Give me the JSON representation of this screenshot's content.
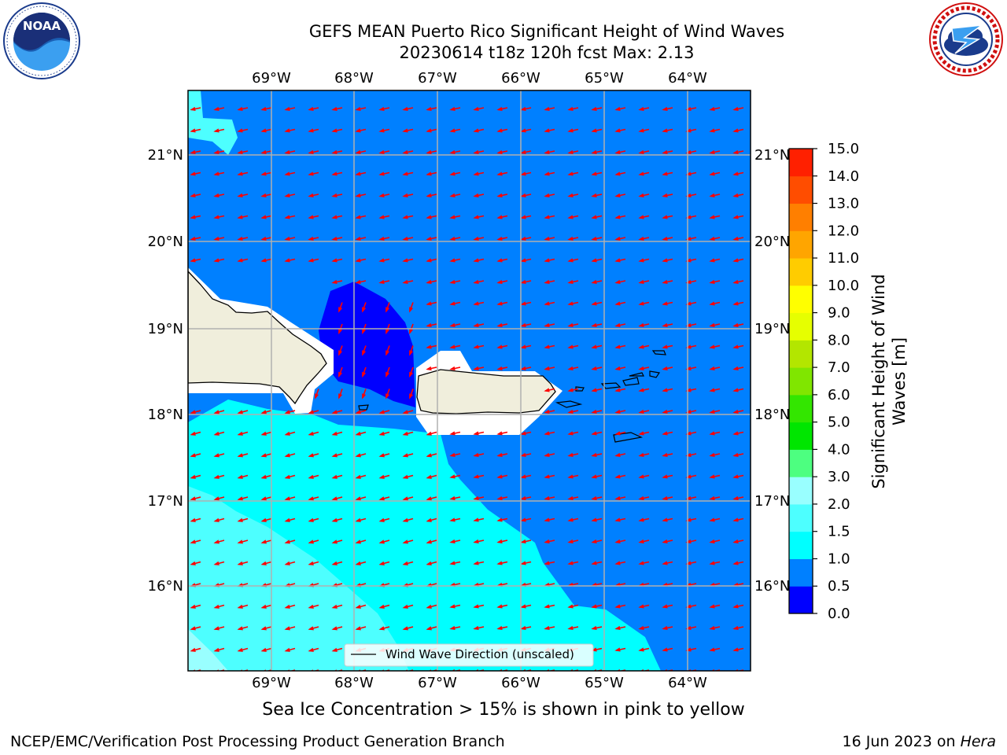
{
  "header": {
    "title_line1": "GEFS MEAN Puerto Rico Significant Height of Wind Waves",
    "title_line2": "20230614 t18z 120h fcst   Max: 2.13"
  },
  "logos": {
    "left": {
      "icon": "noaa-logo-icon",
      "text": "NOAA",
      "ring_text": "NATIONAL OCEANIC AND ATMOSPHERIC ADMINISTRATION · U.S. DEPARTMENT OF COMMERCE"
    },
    "right": {
      "icon": "nws-logo-icon",
      "ring_text": "NATIONAL WEATHER SERVICE"
    }
  },
  "map": {
    "lon_labels_top": [
      "69°W",
      "68°W",
      "67°W",
      "66°W",
      "65°W",
      "64°W"
    ],
    "lon_labels_bottom": [
      "69°W",
      "68°W",
      "67°W",
      "66°W",
      "65°W",
      "64°W"
    ],
    "lat_labels_left": [
      "21°N",
      "20°N",
      "19°N",
      "18°N",
      "17°N",
      "16°N"
    ],
    "lat_labels_right": [
      "21°N",
      "20°N",
      "19°N",
      "18°N",
      "17°N",
      "16°N"
    ],
    "legend_label": "Wind Wave Direction (unscaled)",
    "colors": {
      "ocean": "#0080ff",
      "land": "#f0eedc",
      "arrow": "#ff0000",
      "low": "#0000ff",
      "mid": "#00ffff",
      "high": "#4dffff",
      "higher": "#99ffff"
    }
  },
  "colorbar": {
    "title_line1": "Significant Height of Wind",
    "title_line2": "Waves [m]",
    "tick_labels": [
      "0.0",
      "0.5",
      "1.0",
      "1.5",
      "2.0",
      "3.0",
      "4.0",
      "5.0",
      "6.0",
      "7.0",
      "8.0",
      "9.0",
      "10.0",
      "11.0",
      "12.0",
      "13.0",
      "14.0",
      "15.0"
    ],
    "colors": [
      "#0000ff",
      "#0080ff",
      "#00ffff",
      "#4dffff",
      "#99ffff",
      "#4dff80",
      "#00e600",
      "#33e600",
      "#80e600",
      "#b3e600",
      "#e6ff00",
      "#ffff00",
      "#ffcc00",
      "#ffa500",
      "#ff7f00",
      "#ff4d00",
      "#ff2000"
    ]
  },
  "footer": {
    "caption": "Sea Ice Concentration > 15% is shown in pink to yellow",
    "credit": "NCEP/EMC/Verification Post Processing Product Generation Branch",
    "date": "16 Jun 2023 on ",
    "machine": "Hera"
  }
}
